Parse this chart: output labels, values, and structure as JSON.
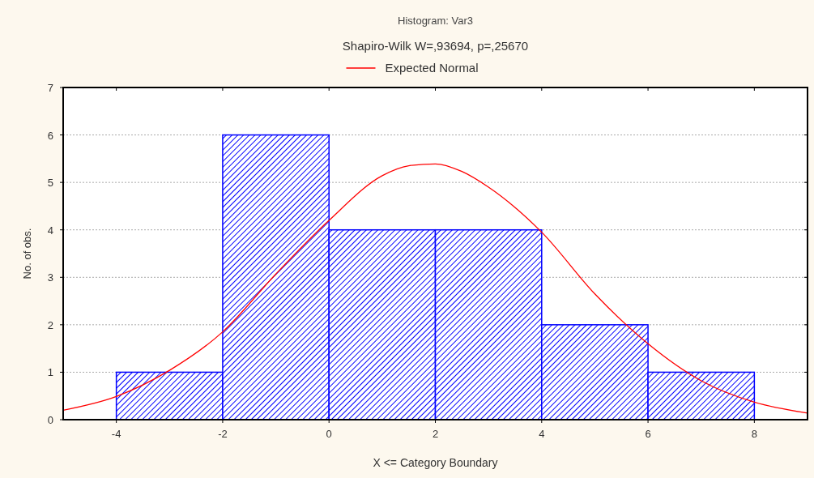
{
  "chart_data": {
    "type": "histogram",
    "title": "Histogram: Var3",
    "subtitle": "Shapiro-Wilk W=,93694, p=,25670",
    "xlabel": "X <= Category  Boundary",
    "ylabel": "No. of obs.",
    "bins": [
      -4,
      -2,
      0,
      2,
      4,
      6,
      8
    ],
    "values": [
      1,
      6,
      4,
      4,
      2,
      1
    ],
    "color": "#0000ff",
    "series": [
      {
        "name": "Expected Normal",
        "type": "line",
        "color": "#ff0000",
        "x": [
          -5,
          -4,
          -3,
          -2,
          -1,
          0,
          1,
          1.5,
          2,
          2.5,
          3,
          4,
          5,
          6,
          7,
          8,
          9
        ],
        "values": [
          0.2,
          0.49,
          1.04,
          1.85,
          3.07,
          4.2,
          5.14,
          5.35,
          5.39,
          5.23,
          4.9,
          3.95,
          2.65,
          1.6,
          0.82,
          0.37,
          0.14
        ]
      }
    ],
    "xlim": [
      -5,
      9
    ],
    "xticks": [
      -4,
      -2,
      0,
      2,
      4,
      6,
      8
    ],
    "ylim": [
      0,
      7
    ],
    "yticks": [
      0,
      1,
      2,
      3,
      4,
      5,
      6,
      7
    ],
    "grid": "y",
    "legend": "top"
  }
}
